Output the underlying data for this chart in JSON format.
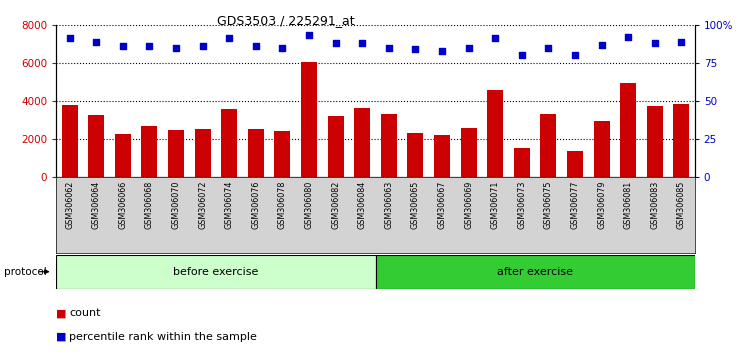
{
  "title": "GDS3503 / 225291_at",
  "categories": [
    "GSM306062",
    "GSM306064",
    "GSM306066",
    "GSM306068",
    "GSM306070",
    "GSM306072",
    "GSM306074",
    "GSM306076",
    "GSM306078",
    "GSM306080",
    "GSM306082",
    "GSM306084",
    "GSM306063",
    "GSM306065",
    "GSM306067",
    "GSM306069",
    "GSM306071",
    "GSM306073",
    "GSM306075",
    "GSM306077",
    "GSM306079",
    "GSM306081",
    "GSM306083",
    "GSM306085"
  ],
  "counts": [
    3800,
    3250,
    2250,
    2700,
    2450,
    2500,
    3550,
    2500,
    2400,
    6050,
    3200,
    3650,
    3300,
    2300,
    2200,
    2550,
    4550,
    1500,
    3300,
    1350,
    2950,
    4950,
    3750,
    3850
  ],
  "percentiles": [
    91,
    89,
    86,
    86,
    85,
    86,
    91,
    86,
    85,
    93,
    88,
    88,
    85,
    84,
    83,
    85,
    91,
    80,
    85,
    80,
    87,
    92,
    88,
    89
  ],
  "before_exercise_count": 12,
  "bar_color": "#cc0000",
  "dot_color": "#0000cc",
  "ylim_left": [
    0,
    8000
  ],
  "ylim_right": [
    0,
    100
  ],
  "yticks_left": [
    0,
    2000,
    4000,
    6000,
    8000
  ],
  "yticks_right": [
    0,
    25,
    50,
    75,
    100
  ],
  "grid_values": [
    2000,
    4000,
    6000,
    8000
  ],
  "before_label": "before exercise",
  "after_label": "after exercise",
  "before_color": "#ccffcc",
  "after_color": "#33cc33",
  "protocol_label": "protocol",
  "legend_count_label": "count",
  "legend_pct_label": "percentile rank within the sample",
  "background_color": "#ffffff",
  "label_bg_color": "#d3d3d3"
}
